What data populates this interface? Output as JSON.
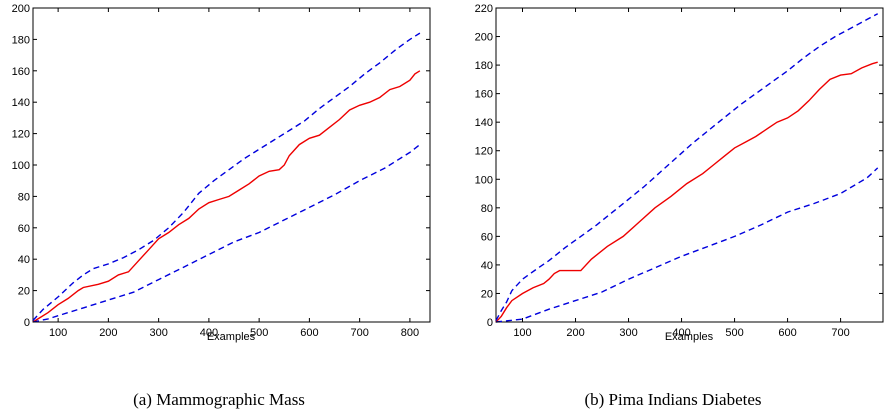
{
  "chart_data": [
    {
      "type": "line",
      "caption": "(a) Mammographic Mass",
      "xlabel": "Examples",
      "ylabel": "",
      "xlim": [
        50,
        840
      ],
      "ylim": [
        0,
        200
      ],
      "xticks": [
        100,
        200,
        300,
        400,
        500,
        600,
        700,
        800
      ],
      "yticks": [
        0,
        20,
        40,
        60,
        80,
        100,
        120,
        140,
        160,
        180,
        200
      ],
      "grid": false,
      "series": [
        {
          "color": "#ee0000",
          "dash": "solid",
          "points": [
            [
              50,
              0
            ],
            [
              60,
              2
            ],
            [
              80,
              6
            ],
            [
              100,
              11
            ],
            [
              120,
              15
            ],
            [
              140,
              20
            ],
            [
              150,
              22
            ],
            [
              180,
              24
            ],
            [
              200,
              26
            ],
            [
              220,
              30
            ],
            [
              240,
              32
            ],
            [
              260,
              39
            ],
            [
              280,
              46
            ],
            [
              300,
              53
            ],
            [
              320,
              57
            ],
            [
              340,
              62
            ],
            [
              360,
              66
            ],
            [
              380,
              72
            ],
            [
              400,
              76
            ],
            [
              420,
              78
            ],
            [
              440,
              80
            ],
            [
              460,
              84
            ],
            [
              480,
              88
            ],
            [
              500,
              93
            ],
            [
              520,
              96
            ],
            [
              540,
              97
            ],
            [
              550,
              100
            ],
            [
              560,
              106
            ],
            [
              580,
              113
            ],
            [
              600,
              117
            ],
            [
              620,
              119
            ],
            [
              640,
              124
            ],
            [
              660,
              129
            ],
            [
              680,
              135
            ],
            [
              700,
              138
            ],
            [
              720,
              140
            ],
            [
              740,
              143
            ],
            [
              760,
              148
            ],
            [
              780,
              150
            ],
            [
              800,
              154
            ],
            [
              810,
              158
            ],
            [
              820,
              160
            ]
          ]
        },
        {
          "color": "#0000dd",
          "dash": "dashed",
          "points": [
            [
              50,
              1
            ],
            [
              70,
              8
            ],
            [
              100,
              16
            ],
            [
              130,
              25
            ],
            [
              150,
              30
            ],
            [
              170,
              34
            ],
            [
              200,
              37
            ],
            [
              230,
              41
            ],
            [
              260,
              46
            ],
            [
              290,
              52
            ],
            [
              320,
              60
            ],
            [
              350,
              70
            ],
            [
              380,
              82
            ],
            [
              410,
              90
            ],
            [
              440,
              97
            ],
            [
              470,
              104
            ],
            [
              500,
              110
            ],
            [
              530,
              116
            ],
            [
              560,
              122
            ],
            [
              590,
              128
            ],
            [
              620,
              136
            ],
            [
              650,
              143
            ],
            [
              680,
              150
            ],
            [
              710,
              158
            ],
            [
              740,
              165
            ],
            [
              770,
              173
            ],
            [
              800,
              180
            ],
            [
              820,
              184
            ]
          ]
        },
        {
          "color": "#0000dd",
          "dash": "dashed",
          "points": [
            [
              50,
              0
            ],
            [
              80,
              2
            ],
            [
              100,
              4
            ],
            [
              150,
              9
            ],
            [
              200,
              14
            ],
            [
              250,
              19
            ],
            [
              300,
              27
            ],
            [
              350,
              35
            ],
            [
              400,
              43
            ],
            [
              450,
              51
            ],
            [
              500,
              57
            ],
            [
              550,
              65
            ],
            [
              600,
              73
            ],
            [
              650,
              81
            ],
            [
              700,
              90
            ],
            [
              750,
              98
            ],
            [
              800,
              108
            ],
            [
              820,
              113
            ]
          ]
        }
      ]
    },
    {
      "type": "line",
      "caption": "(b) Pima Indians Diabetes",
      "xlabel": "Examples",
      "ylabel": "",
      "xlim": [
        50,
        780
      ],
      "ylim": [
        0,
        220
      ],
      "xticks": [
        100,
        200,
        300,
        400,
        500,
        600,
        700
      ],
      "yticks": [
        0,
        20,
        40,
        60,
        80,
        100,
        120,
        140,
        160,
        180,
        200,
        220
      ],
      "grid": false,
      "series": [
        {
          "color": "#ee0000",
          "dash": "solid",
          "points": [
            [
              50,
              0
            ],
            [
              60,
              4
            ],
            [
              70,
              10
            ],
            [
              80,
              15
            ],
            [
              100,
              20
            ],
            [
              120,
              24
            ],
            [
              140,
              27
            ],
            [
              150,
              30
            ],
            [
              160,
              34
            ],
            [
              170,
              36
            ],
            [
              210,
              36
            ],
            [
              230,
              44
            ],
            [
              260,
              53
            ],
            [
              290,
              60
            ],
            [
              320,
              70
            ],
            [
              350,
              80
            ],
            [
              380,
              88
            ],
            [
              410,
              97
            ],
            [
              440,
              104
            ],
            [
              460,
              110
            ],
            [
              480,
              116
            ],
            [
              500,
              122
            ],
            [
              520,
              126
            ],
            [
              540,
              130
            ],
            [
              560,
              135
            ],
            [
              580,
              140
            ],
            [
              600,
              143
            ],
            [
              620,
              148
            ],
            [
              640,
              155
            ],
            [
              660,
              163
            ],
            [
              680,
              170
            ],
            [
              700,
              173
            ],
            [
              720,
              174
            ],
            [
              740,
              178
            ],
            [
              760,
              181
            ],
            [
              770,
              182
            ]
          ]
        },
        {
          "color": "#0000dd",
          "dash": "dashed",
          "points": [
            [
              50,
              1
            ],
            [
              60,
              8
            ],
            [
              70,
              14
            ],
            [
              80,
              22
            ],
            [
              100,
              30
            ],
            [
              130,
              38
            ],
            [
              150,
              43
            ],
            [
              180,
              52
            ],
            [
              210,
              60
            ],
            [
              240,
              68
            ],
            [
              270,
              77
            ],
            [
              300,
              86
            ],
            [
              330,
              95
            ],
            [
              360,
              105
            ],
            [
              390,
              115
            ],
            [
              420,
              125
            ],
            [
              450,
              134
            ],
            [
              480,
              143
            ],
            [
              510,
              152
            ],
            [
              540,
              160
            ],
            [
              570,
              168
            ],
            [
              600,
              176
            ],
            [
              630,
              185
            ],
            [
              660,
              193
            ],
            [
              690,
              200
            ],
            [
              720,
              206
            ],
            [
              750,
              212
            ],
            [
              770,
              216
            ]
          ]
        },
        {
          "color": "#0000dd",
          "dash": "dashed",
          "points": [
            [
              50,
              0
            ],
            [
              100,
              2
            ],
            [
              150,
              9
            ],
            [
              200,
              15
            ],
            [
              250,
              21
            ],
            [
              300,
              30
            ],
            [
              350,
              38
            ],
            [
              400,
              46
            ],
            [
              450,
              53
            ],
            [
              500,
              60
            ],
            [
              550,
              68
            ],
            [
              600,
              77
            ],
            [
              650,
              83
            ],
            [
              700,
              90
            ],
            [
              750,
              101
            ],
            [
              770,
              108
            ]
          ]
        }
      ]
    }
  ]
}
